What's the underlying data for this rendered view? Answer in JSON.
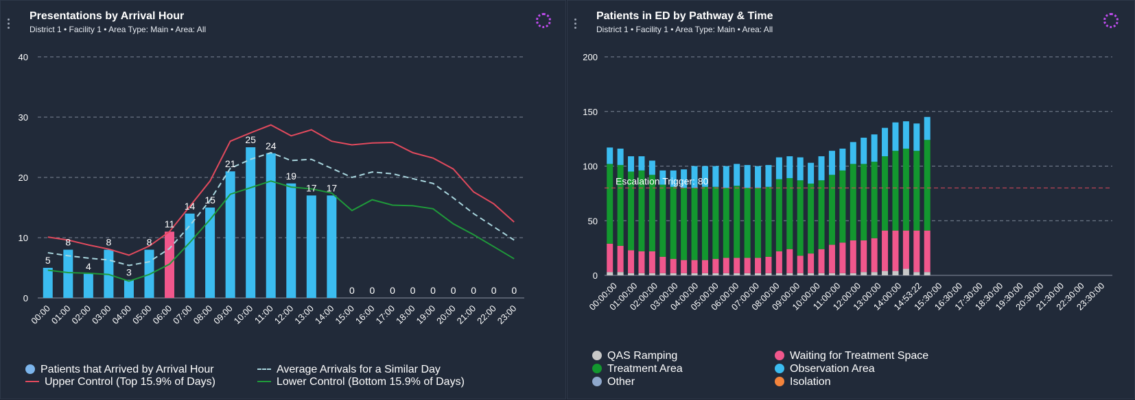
{
  "left_panel": {
    "title": "Presentations by Arrival Hour",
    "subtitle": "District 1  •  Facility 1  •  Area Type: Main  •  Area: All",
    "legend": [
      {
        "label": "Patients that Arrived by Arrival Hour",
        "kind": "dot",
        "color": "#7cb5ec"
      },
      {
        "label": "Average Arrivals for a Similar Day",
        "kind": "dash",
        "color": "#a9d6de"
      },
      {
        "label": "Upper Control (Top 15.9% of Days)",
        "kind": "line",
        "color": "#e24a5d"
      },
      {
        "label": "Lower Control (Bottom 15.9% of Days)",
        "kind": "line",
        "color": "#1f9a3a"
      }
    ]
  },
  "right_panel": {
    "title": "Patients in ED by Pathway & Time",
    "subtitle": "District 1  •  Facility 1  •  Area Type: Main  •  Area: All",
    "escalation_label": "Escalation Trigger: 80",
    "legend": [
      {
        "label": "QAS Ramping",
        "color": "#c8c8c8"
      },
      {
        "label": "Waiting for Treatment Space",
        "color": "#f0578c"
      },
      {
        "label": "Treatment Area",
        "color": "#13972f"
      },
      {
        "label": "Observation Area",
        "color": "#3bbcf0"
      },
      {
        "label": "Other",
        "color": "#8fa8cc"
      },
      {
        "label": "Isolation",
        "color": "#f4843c"
      }
    ]
  },
  "chart_data": [
    {
      "type": "bar",
      "title": "Presentations by Arrival Hour",
      "categories": [
        "00:00",
        "01:00",
        "02:00",
        "03:00",
        "04:00",
        "05:00",
        "06:00",
        "07:00",
        "08:00",
        "09:00",
        "10:00",
        "11:00",
        "12:00",
        "13:00",
        "14:00",
        "15:00",
        "16:00",
        "17:00",
        "18:00",
        "19:00",
        "20:00",
        "21:00",
        "22:00",
        "23:00"
      ],
      "ylim": [
        0,
        40
      ],
      "yticks": [
        0,
        10,
        20,
        30,
        40
      ],
      "highlight_index": 6,
      "bar_color": "#3bbcf0",
      "highlight_color": "#f0578c",
      "series": [
        {
          "name": "Patients that Arrived by Arrival Hour",
          "values": [
            5,
            8,
            4,
            8,
            3,
            8,
            11,
            14,
            15,
            21,
            25,
            24,
            19,
            17,
            17,
            0,
            0,
            0,
            0,
            0,
            0,
            0,
            0,
            0
          ]
        },
        {
          "name": "Average Arrivals for a Similar Day",
          "values": [
            7.5,
            7.0,
            6.6,
            6.3,
            5.4,
            6.0,
            8.2,
            12.0,
            16.2,
            21.5,
            23.0,
            24.1,
            22.8,
            23.0,
            21.5,
            20.0,
            20.9,
            20.6,
            19.8,
            19.0,
            16.6,
            14.0,
            11.8,
            9.6
          ]
        },
        {
          "name": "Upper Control (Top 15.9% of Days)",
          "values": [
            10.1,
            9.6,
            8.8,
            8.1,
            7.1,
            8.6,
            11.0,
            15.2,
            19.4,
            26.0,
            27.4,
            28.7,
            26.9,
            27.9,
            26.0,
            25.4,
            25.7,
            25.8,
            24.1,
            23.2,
            21.4,
            17.6,
            15.6,
            12.6
          ]
        },
        {
          "name": "Lower Control (Bottom 15.9% of Days)",
          "values": [
            4.6,
            4.2,
            4.1,
            3.9,
            2.8,
            3.9,
            5.6,
            9.2,
            13.0,
            17.2,
            18.3,
            19.4,
            18.4,
            18.1,
            17.4,
            14.5,
            16.3,
            15.4,
            15.3,
            14.8,
            12.3,
            10.5,
            8.5,
            6.5
          ]
        }
      ]
    },
    {
      "type": "bar",
      "stacked": true,
      "title": "Patients in ED by Pathway & Time",
      "categories": [
        "00:00:00",
        "00:30:00",
        "01:00:00",
        "01:30:00",
        "02:00:00",
        "02:30:00",
        "03:00:00",
        "03:30:00",
        "04:00:00",
        "04:30:00",
        "05:00:00",
        "05:30:00",
        "06:00:00",
        "06:30:00",
        "07:00:00",
        "07:30:00",
        "08:00:00",
        "08:30:00",
        "09:00:00",
        "09:30:00",
        "10:00:00",
        "10:30:00",
        "11:00:00",
        "11:30:00",
        "12:00:00",
        "12:30:00",
        "13:00:00",
        "13:30:00",
        "14:00:00",
        "14:30:00",
        "14:53:22",
        "15:30:00",
        "16:00:00",
        "16:30:00",
        "17:00:00",
        "17:30:00",
        "18:00:00",
        "18:30:00",
        "19:00:00",
        "19:30:00",
        "20:00:00",
        "20:30:00",
        "21:00:00",
        "21:30:00",
        "22:00:00",
        "22:30:00",
        "23:00:00",
        "23:30:00"
      ],
      "tick_labels": [
        "00:00:00",
        "01:00:00",
        "02:00:00",
        "03:00:00",
        "04:00:00",
        "05:00:00",
        "06:00:00",
        "07:00:00",
        "08:00:00",
        "09:00:00",
        "10:00:00",
        "11:00:00",
        "12:00:00",
        "13:00:00",
        "14:00:00",
        "14:53:22",
        "15:30:00",
        "16:30:00",
        "17:30:00",
        "18:30:00",
        "19:30:00",
        "20:30:00",
        "21:30:00",
        "22:30:00",
        "23:30:00"
      ],
      "ylim": [
        0,
        200
      ],
      "yticks": [
        0,
        50,
        100,
        150,
        200
      ],
      "escalation_trigger": 80,
      "series": [
        {
          "name": "QAS Ramping",
          "values": [
            3,
            3,
            2,
            2,
            2,
            2,
            2,
            2,
            2,
            2,
            2,
            2,
            2,
            2,
            2,
            2,
            2,
            2,
            2,
            2,
            2,
            2,
            2,
            2,
            3,
            3,
            4,
            4,
            6,
            3,
            3,
            0,
            0,
            0,
            0,
            0,
            0,
            0,
            0,
            0,
            0,
            0,
            0,
            0,
            0,
            0,
            0,
            0
          ]
        },
        {
          "name": "Waiting for Treatment Space",
          "values": [
            26,
            24,
            21,
            20,
            20,
            15,
            13,
            12,
            12,
            12,
            13,
            14,
            14,
            14,
            14,
            15,
            20,
            22,
            16,
            18,
            22,
            26,
            28,
            30,
            29,
            31,
            37,
            37,
            35,
            38,
            38,
            0,
            0,
            0,
            0,
            0,
            0,
            0,
            0,
            0,
            0,
            0,
            0,
            0,
            0,
            0,
            0,
            0
          ]
        },
        {
          "name": "Treatment Area",
          "values": [
            73,
            74,
            72,
            74,
            70,
            66,
            66,
            66,
            66,
            67,
            66,
            64,
            66,
            64,
            64,
            64,
            66,
            65,
            69,
            64,
            63,
            64,
            66,
            70,
            70,
            70,
            68,
            73,
            75,
            73,
            83,
            0,
            0,
            0,
            0,
            0,
            0,
            0,
            0,
            0,
            0,
            0,
            0,
            0,
            0,
            0,
            0,
            0
          ]
        },
        {
          "name": "Observation Area",
          "values": [
            15,
            15,
            14,
            13,
            13,
            13,
            15,
            17,
            20,
            19,
            19,
            20,
            20,
            21,
            20,
            20,
            20,
            20,
            21,
            19,
            22,
            22,
            20,
            20,
            24,
            25,
            26,
            26,
            25,
            25,
            21,
            0,
            0,
            0,
            0,
            0,
            0,
            0,
            0,
            0,
            0,
            0,
            0,
            0,
            0,
            0,
            0,
            0
          ]
        },
        {
          "name": "Other",
          "values": [
            0,
            0,
            0,
            0,
            0,
            0,
            0,
            0,
            0,
            0,
            0,
            0,
            0,
            0,
            0,
            0,
            0,
            0,
            0,
            0,
            0,
            0,
            0,
            0,
            0,
            0,
            0,
            0,
            0,
            0,
            0,
            0,
            0,
            0,
            0,
            0,
            0,
            0,
            0,
            0,
            0,
            0,
            0,
            0,
            0,
            0,
            0,
            0
          ]
        },
        {
          "name": "Isolation",
          "values": [
            0,
            0,
            0,
            0,
            0,
            0,
            0,
            0,
            0,
            0,
            0,
            0,
            0,
            0,
            0,
            0,
            0,
            0,
            0,
            0,
            0,
            0,
            0,
            0,
            0,
            0,
            0,
            0,
            0,
            0,
            0,
            0,
            0,
            0,
            0,
            0,
            0,
            0,
            0,
            0,
            0,
            0,
            0,
            0,
            0,
            0,
            0,
            0
          ]
        }
      ]
    }
  ]
}
